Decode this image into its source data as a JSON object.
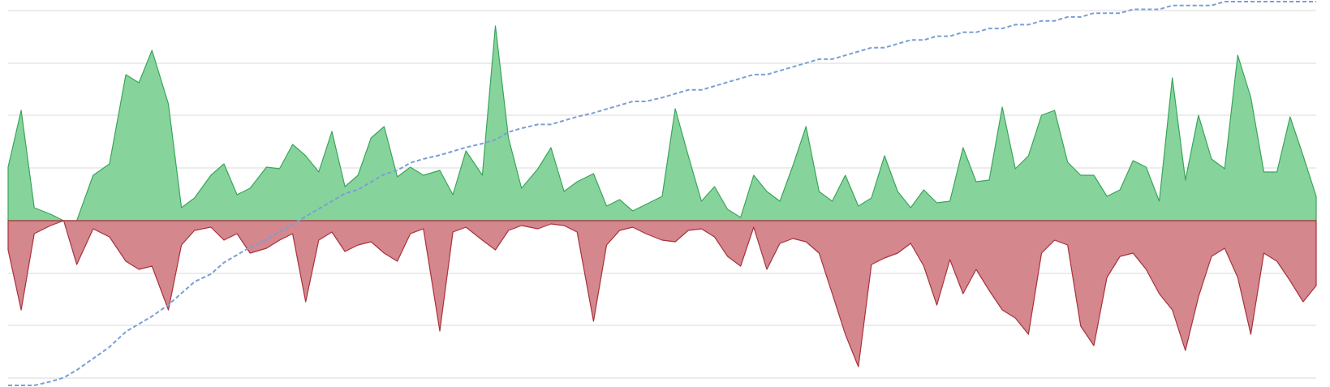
{
  "chart_data": {
    "type": "area",
    "title": "",
    "xlabel": "",
    "ylabel": "",
    "grid": true,
    "ylim": [
      -100,
      135
    ],
    "y2lim": [
      0,
      100
    ],
    "x": [
      0,
      4,
      8,
      13,
      17,
      21,
      26,
      31,
      36,
      40,
      44,
      49,
      53,
      57,
      62,
      66,
      70,
      74,
      79,
      83,
      87,
      91,
      95,
      99,
      103,
      107,
      111,
      115,
      119,
      123,
      127,
      132,
      136,
      140,
      145,
      149,
      153,
      157,
      162,
      166,
      170,
      174,
      179,
      183,
      187,
      191,
      195,
      200,
      204,
      208,
      212,
      216,
      220,
      224,
      228,
      232,
      236,
      240,
      244,
      248,
      252,
      256,
      260,
      264,
      268,
      272,
      276,
      280,
      284,
      288,
      292,
      296,
      300,
      304,
      308,
      312,
      316,
      320,
      324,
      328,
      332,
      336,
      340,
      344,
      348,
      352,
      356,
      360,
      364,
      368,
      372,
      376,
      380,
      384,
      388,
      392,
      396,
      400
    ],
    "series": [
      {
        "color": "#86d49c",
        "stroke": "#3aa55a",
        "values": [
          33,
          68,
          8,
          4,
          0,
          0,
          28,
          35,
          90,
          85,
          105,
          72,
          8,
          14,
          28,
          35,
          16,
          20,
          33,
          32,
          47,
          40,
          30,
          55,
          21,
          28,
          51,
          58,
          27,
          33,
          28,
          31,
          16,
          43,
          28,
          120,
          51,
          20,
          32,
          45,
          18,
          24,
          29,
          9,
          13,
          6,
          10,
          15,
          69,
          40,
          12,
          21,
          7,
          2,
          28,
          18,
          12,
          34,
          58,
          18,
          12,
          28,
          9,
          14,
          40,
          18,
          8,
          19,
          11,
          12,
          45,
          24,
          25,
          70,
          32,
          40,
          65,
          68,
          36,
          28,
          28,
          15,
          19,
          37,
          33,
          12,
          88,
          25,
          65,
          38,
          32,
          102,
          76,
          30,
          30,
          64,
          40,
          15
        ]
      },
      {
        "color": "#d4878d",
        "stroke": "#a8323d",
        "values": [
          -18,
          -55,
          -8,
          -3,
          0,
          -27,
          -5,
          -10,
          -25,
          -30,
          -28,
          -55,
          -15,
          -6,
          -4,
          -12,
          -8,
          -20,
          -17,
          -12,
          -8,
          -50,
          -12,
          -7,
          -19,
          -15,
          -13,
          -20,
          -25,
          -8,
          -5,
          -68,
          -7,
          -4,
          -12,
          -18,
          -6,
          -3,
          -5,
          -2,
          -3,
          -7,
          -62,
          -15,
          -6,
          -4,
          -8,
          -12,
          -13,
          -6,
          -5,
          -10,
          -22,
          -28,
          -4,
          -30,
          -14,
          -11,
          -13,
          -20,
          -45,
          -70,
          -90,
          -27,
          -23,
          -20,
          -14,
          -28,
          -52,
          -24,
          -45,
          -30,
          -43,
          -55,
          -60,
          -70,
          -20,
          -12,
          -15,
          -65,
          -77,
          -35,
          -22,
          -20,
          -30,
          -45,
          -55,
          -80,
          -47,
          -22,
          -17,
          -35,
          -70,
          -20,
          -25,
          -37,
          -50,
          -40
        ]
      },
      {
        "color": "#7a9fd6",
        "dashed": true,
        "axis": "right",
        "values": [
          0,
          0,
          0,
          1,
          2,
          4,
          7,
          10,
          14,
          16,
          18,
          21,
          24,
          27,
          29,
          32,
          34,
          36,
          38,
          40,
          42,
          44,
          46,
          48,
          50,
          51,
          53,
          55,
          56,
          58,
          59,
          60,
          61,
          62,
          63,
          64,
          66,
          67,
          68,
          68,
          69,
          70,
          71,
          72,
          73,
          74,
          74,
          75,
          76,
          77,
          77,
          78,
          79,
          80,
          81,
          81,
          82,
          83,
          84,
          85,
          85,
          86,
          87,
          88,
          88,
          89,
          90,
          90,
          91,
          91,
          92,
          92,
          93,
          93,
          94,
          94,
          95,
          95,
          96,
          96,
          97,
          97,
          97,
          98,
          98,
          98,
          99,
          99,
          99,
          99,
          100,
          100,
          100,
          100,
          100,
          100,
          100,
          100
        ]
      }
    ]
  }
}
